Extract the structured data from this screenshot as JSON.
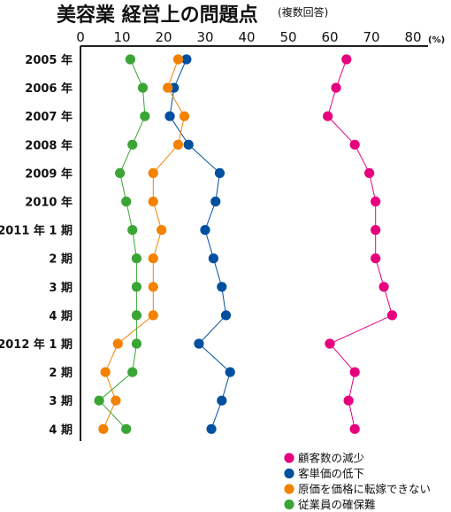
{
  "chart_data": {
    "type": "line",
    "title": "美容業 経営上の問題点",
    "subtitle": "(複数回答)",
    "unit": "(%)",
    "orientation": "horizontal-values",
    "xlim": [
      0,
      80
    ],
    "xticks": [
      0,
      10,
      20,
      30,
      40,
      50,
      60,
      70,
      80
    ],
    "grid": false,
    "legend_position": "bottom-right",
    "categories": [
      "2005 年",
      "2006 年",
      "2007 年",
      "2008 年",
      "2009 年",
      "2010 年",
      "2011 年 1 期",
      "2 期",
      "3 期",
      "4 期",
      "2012 年 1 期",
      "2 期",
      "3 期",
      "4 期"
    ],
    "series": [
      {
        "name": "顧客数の減少",
        "color": "#e6007e",
        "values": [
          64,
          61.5,
          59.5,
          66,
          69.5,
          71,
          71,
          71,
          73,
          75,
          60,
          66,
          64.5,
          66
        ]
      },
      {
        "name": "客単価の低下",
        "color": "#0050a0",
        "values": [
          25.5,
          22.5,
          21.5,
          26,
          33.5,
          32.5,
          30,
          32,
          34,
          35,
          28.5,
          36,
          34,
          31.5
        ]
      },
      {
        "name": "原価を価格に転嫁できない",
        "color": "#f28200",
        "values": [
          23.5,
          21,
          25,
          23.5,
          17.5,
          17.5,
          19.5,
          17.5,
          17.5,
          17.5,
          9,
          6,
          8.5,
          5.5
        ]
      },
      {
        "name": "従業員の確保難",
        "color": "#3aa535",
        "values": [
          12,
          15,
          15.5,
          12.5,
          9.5,
          11,
          12.5,
          13.5,
          13.5,
          13.5,
          13.5,
          12.5,
          4.5,
          11
        ]
      }
    ]
  }
}
